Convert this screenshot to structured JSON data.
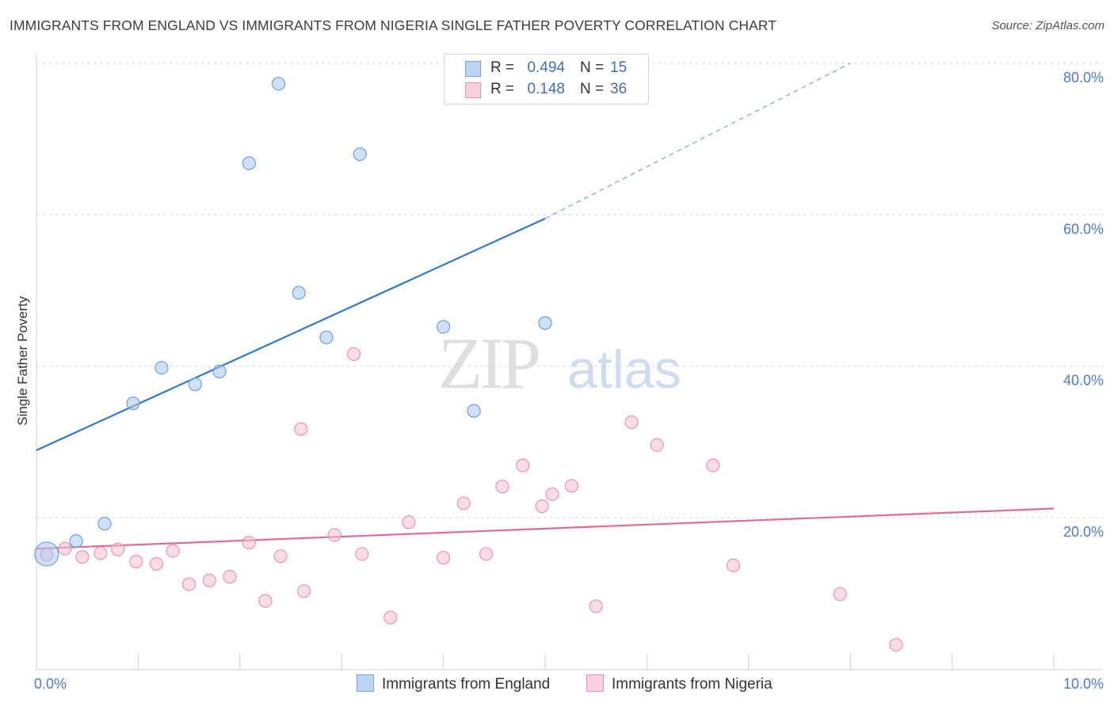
{
  "title": "IMMIGRANTS FROM ENGLAND VS IMMIGRANTS FROM NIGERIA SINGLE FATHER POVERTY CORRELATION CHART",
  "source": "Source: ZipAtlas.com",
  "watermark": {
    "zip": "ZIP",
    "atlas": "atlas"
  },
  "legend": {
    "rows": [
      {
        "r_label": "R =",
        "r_value": "0.494",
        "n_label": "N =",
        "n_value": "15",
        "color": "#a8c8f0",
        "border": "#7aa6e0"
      },
      {
        "r_label": "R =",
        "r_value": "0.148",
        "n_label": "N =",
        "n_value": "36",
        "color": "#f6bfd0",
        "border": "#e895b0"
      }
    ]
  },
  "bottom_legend": {
    "england": "Immigrants from England",
    "nigeria": "Immigrants from Nigeria"
  },
  "chart_data": {
    "type": "scatter",
    "title": "IMMIGRANTS FROM ENGLAND VS IMMIGRANTS FROM NIGERIA SINGLE FATHER POVERTY CORRELATION CHART",
    "xlabel": "",
    "ylabel": "Single Father Poverty",
    "xlim": [
      0,
      10
    ],
    "ylim": [
      0,
      82
    ],
    "x_tick_labels": [
      {
        "value": 0,
        "label": "0.0%"
      },
      {
        "value": 10,
        "label": "10.0%"
      }
    ],
    "y_tick_labels": [
      {
        "value": 20,
        "label": "20.0%"
      },
      {
        "value": 40,
        "label": "40.0%"
      },
      {
        "value": 60,
        "label": "60.0%"
      },
      {
        "value": 80,
        "label": "80.0%"
      }
    ],
    "x_minor_ticks": [
      0,
      1,
      2,
      3,
      4,
      5,
      6,
      7,
      8,
      9,
      10
    ],
    "series": [
      {
        "name": "Immigrants from England",
        "color": "#a8c8f0",
        "stroke": "#6f9fdc",
        "trend_color": "#2f78d0",
        "trend": {
          "x0": 0,
          "y0": 28.9,
          "x1": 5.0,
          "y1": 59.5,
          "dash_to_x": 8.0,
          "dash_to_y": 80
        },
        "points": [
          {
            "x": 0.1,
            "y": 15.2,
            "big": true
          },
          {
            "x": 0.39,
            "y": 16.9
          },
          {
            "x": 0.67,
            "y": 19.2
          },
          {
            "x": 0.95,
            "y": 35.1
          },
          {
            "x": 1.23,
            "y": 39.8
          },
          {
            "x": 1.56,
            "y": 37.6
          },
          {
            "x": 1.8,
            "y": 39.3
          },
          {
            "x": 2.09,
            "y": 66.8
          },
          {
            "x": 2.38,
            "y": 77.3
          },
          {
            "x": 2.58,
            "y": 49.7
          },
          {
            "x": 2.85,
            "y": 43.8
          },
          {
            "x": 3.18,
            "y": 68.0
          },
          {
            "x": 4.0,
            "y": 45.2
          },
          {
            "x": 4.3,
            "y": 34.1
          },
          {
            "x": 5.0,
            "y": 45.7
          }
        ]
      },
      {
        "name": "Immigrants from Nigeria",
        "color": "#f6bfd0",
        "stroke": "#e895b0",
        "trend_color": "#e06d98",
        "trend": {
          "x0": 0,
          "y0": 15.9,
          "x1": 10.0,
          "y1": 21.2
        },
        "points": [
          {
            "x": 0.1,
            "y": 15.1
          },
          {
            "x": 0.28,
            "y": 15.9
          },
          {
            "x": 0.45,
            "y": 14.8
          },
          {
            "x": 0.63,
            "y": 15.3
          },
          {
            "x": 0.8,
            "y": 15.8
          },
          {
            "x": 0.98,
            "y": 14.2
          },
          {
            "x": 1.18,
            "y": 13.9
          },
          {
            "x": 1.34,
            "y": 15.6
          },
          {
            "x": 1.5,
            "y": 11.2
          },
          {
            "x": 1.7,
            "y": 11.7
          },
          {
            "x": 1.9,
            "y": 12.2
          },
          {
            "x": 2.09,
            "y": 16.7
          },
          {
            "x": 2.25,
            "y": 9.0
          },
          {
            "x": 2.4,
            "y": 14.9
          },
          {
            "x": 2.6,
            "y": 31.7
          },
          {
            "x": 2.63,
            "y": 10.3
          },
          {
            "x": 2.93,
            "y": 17.7
          },
          {
            "x": 3.12,
            "y": 41.6
          },
          {
            "x": 3.2,
            "y": 15.2
          },
          {
            "x": 3.48,
            "y": 6.8
          },
          {
            "x": 3.66,
            "y": 19.4
          },
          {
            "x": 4.0,
            "y": 14.7
          },
          {
            "x": 4.2,
            "y": 21.9
          },
          {
            "x": 4.42,
            "y": 15.2
          },
          {
            "x": 4.58,
            "y": 24.1
          },
          {
            "x": 4.78,
            "y": 26.9
          },
          {
            "x": 4.97,
            "y": 21.5
          },
          {
            "x": 5.07,
            "y": 23.1
          },
          {
            "x": 5.26,
            "y": 24.2
          },
          {
            "x": 5.5,
            "y": 8.3
          },
          {
            "x": 5.85,
            "y": 32.6
          },
          {
            "x": 6.1,
            "y": 29.6
          },
          {
            "x": 6.65,
            "y": 26.9
          },
          {
            "x": 6.85,
            "y": 13.7
          },
          {
            "x": 7.9,
            "y": 9.9
          },
          {
            "x": 8.45,
            "y": 3.2
          }
        ]
      }
    ]
  }
}
